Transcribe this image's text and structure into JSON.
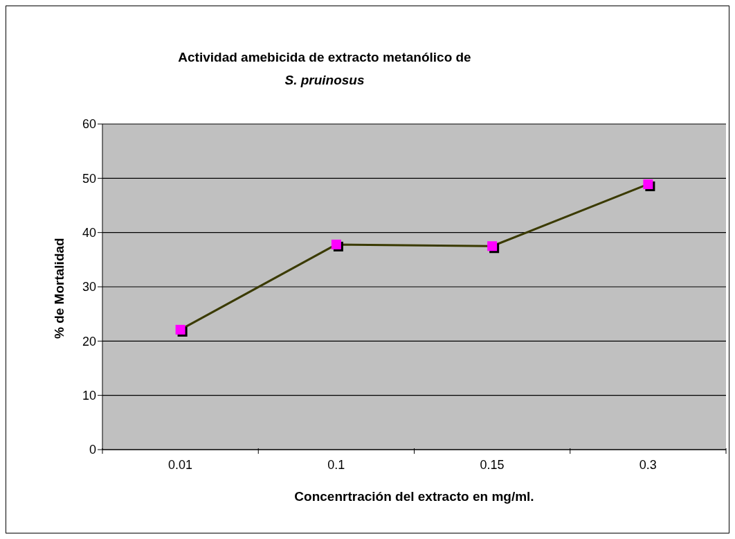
{
  "chart_data": {
    "type": "line",
    "title": "Actividad amebicida de extracto metanólico de\nS. pruinosus",
    "xlabel": "Concenrtración del extracto en mg/ml.",
    "ylabel": "% de Mortalidad",
    "categories": [
      "0.01",
      "0.1",
      "0.15",
      "0.3"
    ],
    "series": [
      {
        "color": "#3a3a00",
        "colors": [
          "#ff00ff",
          "#ff00ff",
          "#ff00ff",
          "#ff00ff"
        ],
        "values": [
          22.1,
          37.8,
          37.5,
          48.9
        ]
      }
    ],
    "ylim": [
      0,
      60
    ],
    "yticks": [
      0,
      10,
      20,
      30,
      40,
      50,
      60
    ],
    "grid": "y",
    "marker": "square",
    "line_style": "solid"
  }
}
